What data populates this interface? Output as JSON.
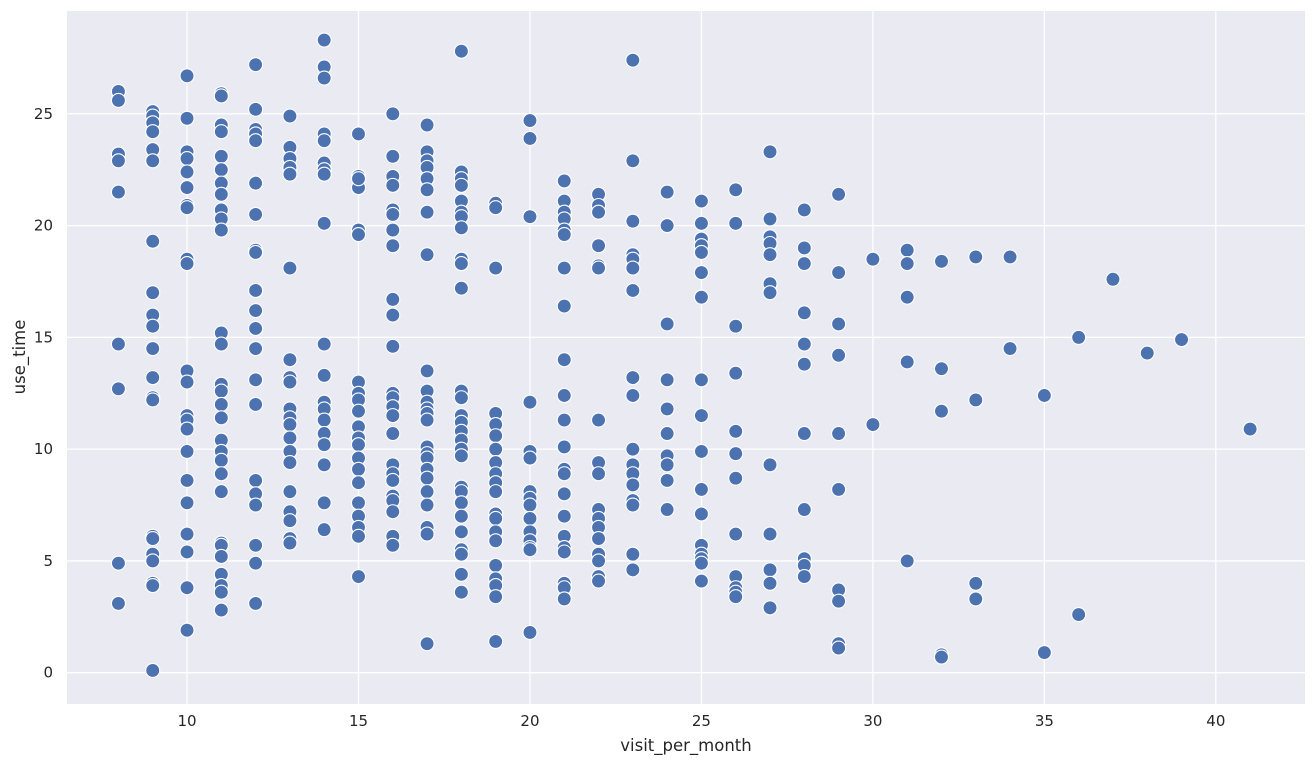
{
  "chart_data": {
    "type": "scatter",
    "title": "",
    "xlabel": "visit_per_month",
    "ylabel": "use_time",
    "xlim": [
      6.5,
      42.6
    ],
    "ylim": [
      -1.4,
      29.6
    ],
    "xticks": [
      10,
      15,
      20,
      25,
      30,
      35,
      40
    ],
    "yticks": [
      0,
      5,
      10,
      15,
      20,
      25
    ],
    "grid": true,
    "colors": {
      "background": "#eaeaf2",
      "grid": "#ffffff",
      "marker": "#4c72b0",
      "marker_edge": "#ffffff",
      "text": "#262626"
    },
    "points": [
      [
        8,
        26.0
      ],
      [
        8,
        25.6
      ],
      [
        8,
        23.2
      ],
      [
        8,
        22.9
      ],
      [
        8,
        21.5
      ],
      [
        8,
        14.7
      ],
      [
        8,
        12.7
      ],
      [
        8,
        4.9
      ],
      [
        8,
        3.1
      ],
      [
        9,
        25.1
      ],
      [
        9,
        24.9
      ],
      [
        9,
        24.6
      ],
      [
        9,
        24.2
      ],
      [
        9,
        23.4
      ],
      [
        9,
        22.9
      ],
      [
        9,
        19.3
      ],
      [
        9,
        17.0
      ],
      [
        9,
        16.0
      ],
      [
        9,
        15.5
      ],
      [
        9,
        14.5
      ],
      [
        9,
        13.2
      ],
      [
        9,
        12.3
      ],
      [
        9,
        12.2
      ],
      [
        9,
        6.1
      ],
      [
        9,
        6.0
      ],
      [
        9,
        5.3
      ],
      [
        9,
        5.0
      ],
      [
        9,
        4.0
      ],
      [
        9,
        3.9
      ],
      [
        9,
        0.1
      ],
      [
        10,
        26.7
      ],
      [
        10,
        24.8
      ],
      [
        10,
        23.3
      ],
      [
        10,
        23.0
      ],
      [
        10,
        22.4
      ],
      [
        10,
        21.7
      ],
      [
        10,
        20.9
      ],
      [
        10,
        20.8
      ],
      [
        10,
        18.5
      ],
      [
        10,
        18.3
      ],
      [
        10,
        13.5
      ],
      [
        10,
        13.0
      ],
      [
        10,
        11.5
      ],
      [
        10,
        11.3
      ],
      [
        10,
        10.9
      ],
      [
        10,
        9.9
      ],
      [
        10,
        8.6
      ],
      [
        10,
        7.6
      ],
      [
        10,
        6.2
      ],
      [
        10,
        5.4
      ],
      [
        10,
        3.8
      ],
      [
        10,
        1.9
      ],
      [
        11,
        25.9
      ],
      [
        11,
        25.8
      ],
      [
        11,
        24.5
      ],
      [
        11,
        24.2
      ],
      [
        11,
        23.1
      ],
      [
        11,
        22.5
      ],
      [
        11,
        21.9
      ],
      [
        11,
        21.4
      ],
      [
        11,
        20.7
      ],
      [
        11,
        20.3
      ],
      [
        11,
        19.8
      ],
      [
        11,
        15.2
      ],
      [
        11,
        14.7
      ],
      [
        11,
        12.9
      ],
      [
        11,
        12.6
      ],
      [
        11,
        12.0
      ],
      [
        11,
        11.4
      ],
      [
        11,
        10.4
      ],
      [
        11,
        9.9
      ],
      [
        11,
        9.5
      ],
      [
        11,
        8.9
      ],
      [
        11,
        8.1
      ],
      [
        11,
        5.8
      ],
      [
        11,
        5.7
      ],
      [
        11,
        5.2
      ],
      [
        11,
        4.4
      ],
      [
        11,
        3.9
      ],
      [
        11,
        3.6
      ],
      [
        11,
        2.8
      ],
      [
        12,
        27.2
      ],
      [
        12,
        25.2
      ],
      [
        12,
        24.3
      ],
      [
        12,
        24.1
      ],
      [
        12,
        23.8
      ],
      [
        12,
        21.9
      ],
      [
        12,
        20.5
      ],
      [
        12,
        18.9
      ],
      [
        12,
        18.8
      ],
      [
        12,
        17.1
      ],
      [
        12,
        16.2
      ],
      [
        12,
        15.4
      ],
      [
        12,
        14.5
      ],
      [
        12,
        13.1
      ],
      [
        12,
        12.0
      ],
      [
        12,
        8.6
      ],
      [
        12,
        8.0
      ],
      [
        12,
        7.5
      ],
      [
        12,
        5.7
      ],
      [
        12,
        4.9
      ],
      [
        12,
        3.1
      ],
      [
        13,
        24.9
      ],
      [
        13,
        23.5
      ],
      [
        13,
        23.0
      ],
      [
        13,
        22.6
      ],
      [
        13,
        22.3
      ],
      [
        13,
        18.1
      ],
      [
        13,
        14.0
      ],
      [
        13,
        13.2
      ],
      [
        13,
        13.0
      ],
      [
        13,
        11.8
      ],
      [
        13,
        11.4
      ],
      [
        13,
        11.1
      ],
      [
        13,
        10.5
      ],
      [
        13,
        9.9
      ],
      [
        13,
        9.4
      ],
      [
        13,
        8.1
      ],
      [
        13,
        7.2
      ],
      [
        13,
        6.8
      ],
      [
        13,
        6.0
      ],
      [
        13,
        5.8
      ],
      [
        14,
        28.3
      ],
      [
        14,
        27.1
      ],
      [
        14,
        26.6
      ],
      [
        14,
        24.1
      ],
      [
        14,
        23.8
      ],
      [
        14,
        22.8
      ],
      [
        14,
        22.5
      ],
      [
        14,
        22.3
      ],
      [
        14,
        20.1
      ],
      [
        14,
        14.7
      ],
      [
        14,
        13.3
      ],
      [
        14,
        12.1
      ],
      [
        14,
        11.8
      ],
      [
        14,
        11.3
      ],
      [
        14,
        10.7
      ],
      [
        14,
        10.2
      ],
      [
        14,
        9.3
      ],
      [
        14,
        7.6
      ],
      [
        14,
        6.4
      ],
      [
        15,
        24.1
      ],
      [
        15,
        22.2
      ],
      [
        15,
        21.7
      ],
      [
        15,
        22.1
      ],
      [
        15,
        19.8
      ],
      [
        15,
        19.6
      ],
      [
        15,
        13.0
      ],
      [
        15,
        12.5
      ],
      [
        15,
        12.2
      ],
      [
        15,
        11.7
      ],
      [
        15,
        11.0
      ],
      [
        15,
        10.5
      ],
      [
        15,
        10.2
      ],
      [
        15,
        9.6
      ],
      [
        15,
        9.1
      ],
      [
        15,
        8.5
      ],
      [
        15,
        7.6
      ],
      [
        15,
        7.0
      ],
      [
        15,
        6.5
      ],
      [
        15,
        6.1
      ],
      [
        15,
        4.3
      ],
      [
        16,
        25.0
      ],
      [
        16,
        23.1
      ],
      [
        16,
        22.2
      ],
      [
        16,
        21.8
      ],
      [
        16,
        20.7
      ],
      [
        16,
        20.5
      ],
      [
        16,
        19.8
      ],
      [
        16,
        19.1
      ],
      [
        16,
        16.7
      ],
      [
        16,
        16.0
      ],
      [
        16,
        14.6
      ],
      [
        16,
        12.5
      ],
      [
        16,
        12.3
      ],
      [
        16,
        11.9
      ],
      [
        16,
        11.5
      ],
      [
        16,
        10.7
      ],
      [
        16,
        9.3
      ],
      [
        16,
        8.9
      ],
      [
        16,
        8.6
      ],
      [
        16,
        7.9
      ],
      [
        16,
        7.7
      ],
      [
        16,
        7.2
      ],
      [
        16,
        6.1
      ],
      [
        16,
        5.7
      ],
      [
        17,
        24.5
      ],
      [
        17,
        23.3
      ],
      [
        17,
        22.9
      ],
      [
        17,
        22.6
      ],
      [
        17,
        22.1
      ],
      [
        17,
        21.6
      ],
      [
        17,
        20.6
      ],
      [
        17,
        18.7
      ],
      [
        17,
        13.5
      ],
      [
        17,
        12.6
      ],
      [
        17,
        12.1
      ],
      [
        17,
        11.8
      ],
      [
        17,
        11.6
      ],
      [
        17,
        11.3
      ],
      [
        17,
        10.1
      ],
      [
        17,
        9.8
      ],
      [
        17,
        9.6
      ],
      [
        17,
        9.1
      ],
      [
        17,
        8.7
      ],
      [
        17,
        8.1
      ],
      [
        17,
        7.5
      ],
      [
        17,
        6.5
      ],
      [
        17,
        6.2
      ],
      [
        17,
        1.3
      ],
      [
        18,
        27.8
      ],
      [
        18,
        22.4
      ],
      [
        18,
        22.1
      ],
      [
        18,
        21.8
      ],
      [
        18,
        21.1
      ],
      [
        18,
        20.6
      ],
      [
        18,
        20.4
      ],
      [
        18,
        19.9
      ],
      [
        18,
        18.5
      ],
      [
        18,
        18.3
      ],
      [
        18,
        17.2
      ],
      [
        18,
        12.6
      ],
      [
        18,
        12.3
      ],
      [
        18,
        11.5
      ],
      [
        18,
        11.2
      ],
      [
        18,
        10.8
      ],
      [
        18,
        10.4
      ],
      [
        18,
        10.0
      ],
      [
        18,
        9.7
      ],
      [
        18,
        8.3
      ],
      [
        18,
        8.1
      ],
      [
        18,
        7.6
      ],
      [
        18,
        7.0
      ],
      [
        18,
        6.3
      ],
      [
        18,
        5.5
      ],
      [
        18,
        5.3
      ],
      [
        18,
        4.4
      ],
      [
        18,
        3.6
      ],
      [
        19,
        21.0
      ],
      [
        19,
        20.8
      ],
      [
        19,
        18.1
      ],
      [
        19,
        11.6
      ],
      [
        19,
        11.1
      ],
      [
        19,
        10.6
      ],
      [
        19,
        10.0
      ],
      [
        19,
        9.4
      ],
      [
        19,
        8.9
      ],
      [
        19,
        8.5
      ],
      [
        19,
        8.1
      ],
      [
        19,
        7.1
      ],
      [
        19,
        6.9
      ],
      [
        19,
        6.3
      ],
      [
        19,
        5.9
      ],
      [
        19,
        4.8
      ],
      [
        19,
        4.2
      ],
      [
        19,
        3.9
      ],
      [
        19,
        3.4
      ],
      [
        19,
        1.4
      ],
      [
        20,
        24.7
      ],
      [
        20,
        23.9
      ],
      [
        20,
        20.4
      ],
      [
        20,
        12.1
      ],
      [
        20,
        9.9
      ],
      [
        20,
        9.6
      ],
      [
        20,
        8.1
      ],
      [
        20,
        7.8
      ],
      [
        20,
        7.5
      ],
      [
        20,
        6.9
      ],
      [
        20,
        6.3
      ],
      [
        20,
        5.9
      ],
      [
        20,
        5.6
      ],
      [
        20,
        5.5
      ],
      [
        20,
        1.8
      ],
      [
        21,
        22.0
      ],
      [
        21,
        21.1
      ],
      [
        21,
        20.6
      ],
      [
        21,
        20.3
      ],
      [
        21,
        19.8
      ],
      [
        21,
        19.6
      ],
      [
        21,
        18.1
      ],
      [
        21,
        16.4
      ],
      [
        21,
        14.0
      ],
      [
        21,
        12.4
      ],
      [
        21,
        11.3
      ],
      [
        21,
        10.1
      ],
      [
        21,
        9.1
      ],
      [
        21,
        8.9
      ],
      [
        21,
        8.0
      ],
      [
        21,
        7.0
      ],
      [
        21,
        6.1
      ],
      [
        21,
        5.6
      ],
      [
        21,
        5.4
      ],
      [
        21,
        4.0
      ],
      [
        21,
        3.8
      ],
      [
        21,
        3.3
      ],
      [
        22,
        21.4
      ],
      [
        22,
        20.9
      ],
      [
        22,
        20.6
      ],
      [
        22,
        19.1
      ],
      [
        22,
        18.2
      ],
      [
        22,
        18.1
      ],
      [
        22,
        11.3
      ],
      [
        22,
        9.4
      ],
      [
        22,
        8.9
      ],
      [
        22,
        7.3
      ],
      [
        22,
        6.9
      ],
      [
        22,
        6.5
      ],
      [
        22,
        6.0
      ],
      [
        22,
        5.3
      ],
      [
        22,
        5.0
      ],
      [
        22,
        4.3
      ],
      [
        22,
        4.1
      ],
      [
        23,
        27.4
      ],
      [
        23,
        22.9
      ],
      [
        23,
        20.2
      ],
      [
        23,
        18.7
      ],
      [
        23,
        18.5
      ],
      [
        23,
        18.1
      ],
      [
        23,
        17.1
      ],
      [
        23,
        13.2
      ],
      [
        23,
        12.4
      ],
      [
        23,
        10.0
      ],
      [
        23,
        9.3
      ],
      [
        23,
        8.9
      ],
      [
        23,
        8.4
      ],
      [
        23,
        7.7
      ],
      [
        23,
        7.5
      ],
      [
        23,
        5.3
      ],
      [
        23,
        4.6
      ],
      [
        24,
        21.5
      ],
      [
        24,
        20.0
      ],
      [
        24,
        15.6
      ],
      [
        24,
        13.1
      ],
      [
        24,
        11.8
      ],
      [
        24,
        10.7
      ],
      [
        24,
        9.7
      ],
      [
        24,
        9.3
      ],
      [
        24,
        8.6
      ],
      [
        24,
        7.3
      ],
      [
        25,
        21.1
      ],
      [
        25,
        20.1
      ],
      [
        25,
        19.4
      ],
      [
        25,
        19.1
      ],
      [
        25,
        18.8
      ],
      [
        25,
        17.9
      ],
      [
        25,
        16.8
      ],
      [
        25,
        13.1
      ],
      [
        25,
        11.5
      ],
      [
        25,
        9.9
      ],
      [
        25,
        8.2
      ],
      [
        25,
        7.1
      ],
      [
        25,
        5.7
      ],
      [
        25,
        5.3
      ],
      [
        25,
        5.1
      ],
      [
        25,
        4.9
      ],
      [
        25,
        4.1
      ],
      [
        26,
        21.6
      ],
      [
        26,
        20.1
      ],
      [
        26,
        15.5
      ],
      [
        26,
        13.4
      ],
      [
        26,
        10.8
      ],
      [
        26,
        9.8
      ],
      [
        26,
        8.7
      ],
      [
        26,
        6.2
      ],
      [
        26,
        4.3
      ],
      [
        26,
        3.8
      ],
      [
        26,
        3.6
      ],
      [
        26,
        3.4
      ],
      [
        27,
        23.3
      ],
      [
        27,
        20.3
      ],
      [
        27,
        19.5
      ],
      [
        27,
        19.2
      ],
      [
        27,
        18.7
      ],
      [
        27,
        17.4
      ],
      [
        27,
        17.0
      ],
      [
        27,
        9.3
      ],
      [
        27,
        6.2
      ],
      [
        27,
        4.6
      ],
      [
        27,
        4.0
      ],
      [
        27,
        2.9
      ],
      [
        28,
        20.7
      ],
      [
        28,
        19.0
      ],
      [
        28,
        18.3
      ],
      [
        28,
        16.1
      ],
      [
        28,
        14.7
      ],
      [
        28,
        13.8
      ],
      [
        28,
        10.7
      ],
      [
        28,
        7.3
      ],
      [
        28,
        5.1
      ],
      [
        28,
        4.8
      ],
      [
        28,
        4.3
      ],
      [
        29,
        21.4
      ],
      [
        29,
        17.9
      ],
      [
        29,
        15.6
      ],
      [
        29,
        14.2
      ],
      [
        29,
        10.7
      ],
      [
        29,
        8.2
      ],
      [
        29,
        3.7
      ],
      [
        29,
        3.2
      ],
      [
        29,
        1.3
      ],
      [
        29,
        1.1
      ],
      [
        30,
        18.5
      ],
      [
        30,
        11.1
      ],
      [
        31,
        18.9
      ],
      [
        31,
        18.3
      ],
      [
        31,
        16.8
      ],
      [
        31,
        13.9
      ],
      [
        31,
        5.0
      ],
      [
        32,
        18.4
      ],
      [
        32,
        13.6
      ],
      [
        32,
        11.7
      ],
      [
        32,
        0.8
      ],
      [
        32,
        0.7
      ],
      [
        33,
        18.6
      ],
      [
        33,
        12.2
      ],
      [
        33,
        4.0
      ],
      [
        33,
        3.3
      ],
      [
        34,
        18.6
      ],
      [
        34,
        14.5
      ],
      [
        35,
        12.4
      ],
      [
        35,
        0.9
      ],
      [
        36,
        15.0
      ],
      [
        36,
        2.6
      ],
      [
        37,
        17.6
      ],
      [
        38,
        14.3
      ],
      [
        39,
        14.9
      ],
      [
        41,
        10.9
      ]
    ]
  }
}
